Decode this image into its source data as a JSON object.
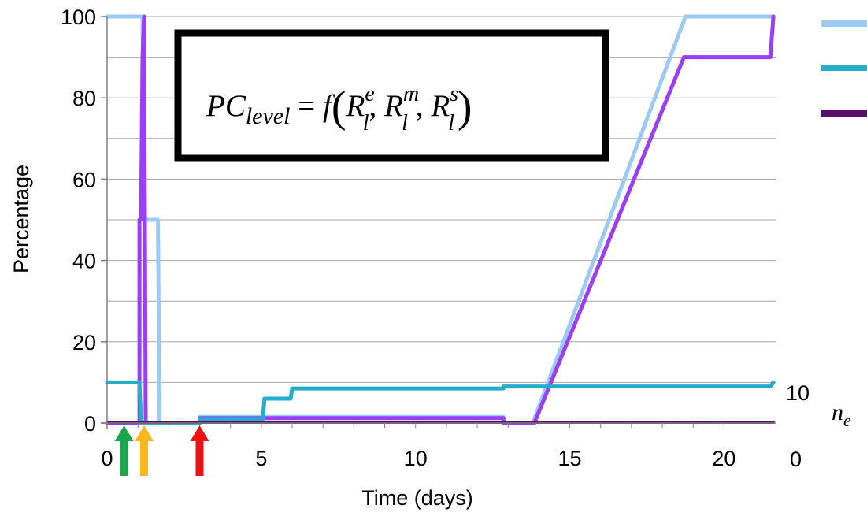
{
  "chart_data": {
    "type": "line",
    "title": "",
    "xlabel": "Time (days)",
    "ylabel": "Percentage",
    "xlim": [
      0,
      21.7
    ],
    "ylim": [
      0,
      100
    ],
    "x_ticks": [
      0,
      5,
      10,
      15,
      20
    ],
    "y_ticks": [
      0,
      20,
      40,
      60,
      80,
      100
    ],
    "grid": "horizontal",
    "legend": "top-right",
    "annotation": {
      "lhs": "PC",
      "lhs_sub": "level",
      "rhs_func": "f",
      "args": [
        {
          "base": "R",
          "sub": "l",
          "sup": "e"
        },
        {
          "base": "R",
          "sub": "l",
          "sup": "m"
        },
        {
          "base": "R",
          "sub": "l",
          "sup": "s"
        }
      ]
    },
    "secondary_axis": {
      "title": "n",
      "title_sub": "e",
      "ticks": [
        {
          "label": "0",
          "value": 0
        },
        {
          "label": "10",
          "value": 10
        }
      ]
    },
    "markers": [
      {
        "x": 0.55,
        "color": "#1aa64b"
      },
      {
        "x": 1.2,
        "color": "#ffb81c"
      },
      {
        "x": 3.0,
        "color": "#ee1111"
      }
    ],
    "series": [
      {
        "color": "#9ccaf5",
        "points": [
          [
            0,
            100
          ],
          [
            1.15,
            100
          ],
          [
            1.2,
            50
          ],
          [
            1.65,
            50
          ],
          [
            1.7,
            0
          ],
          [
            3.0,
            0
          ],
          [
            3.0,
            1.5
          ],
          [
            12.85,
            1.5
          ],
          [
            12.85,
            0
          ],
          [
            13.8,
            0
          ],
          [
            18.75,
            100
          ],
          [
            21.6,
            100
          ]
        ]
      },
      {
        "color": "#9a3ef7",
        "points": [
          [
            0,
            0
          ],
          [
            1.05,
            0
          ],
          [
            1.05,
            50
          ],
          [
            1.1,
            50
          ],
          [
            1.15,
            90
          ],
          [
            1.2,
            100
          ],
          [
            1.25,
            0
          ],
          [
            3.0,
            0
          ],
          [
            3.0,
            1.2
          ],
          [
            12.85,
            1.2
          ],
          [
            12.85,
            0
          ],
          [
            13.85,
            0
          ],
          [
            18.7,
            90
          ],
          [
            21.5,
            90
          ],
          [
            21.6,
            100
          ]
        ]
      },
      {
        "color": "#24aecc",
        "points": [
          [
            0,
            10
          ],
          [
            1.05,
            10
          ],
          [
            1.1,
            0
          ],
          [
            3.0,
            0
          ],
          [
            3.0,
            1.0
          ],
          [
            5.05,
            1.0
          ],
          [
            5.1,
            6
          ],
          [
            5.95,
            6
          ],
          [
            6.0,
            8.5
          ],
          [
            12.85,
            8.5
          ],
          [
            12.85,
            9
          ],
          [
            21.5,
            9
          ],
          [
            21.6,
            10
          ]
        ]
      },
      {
        "color": "#5a0a68",
        "points": [
          [
            0,
            0.2
          ],
          [
            21.6,
            0.2
          ]
        ]
      }
    ]
  }
}
